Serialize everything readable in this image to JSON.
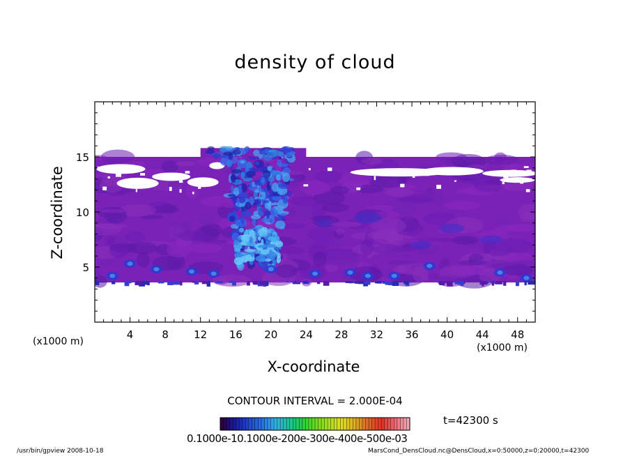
{
  "chart_data": {
    "type": "heatmap",
    "title": "density of cloud",
    "xlabel": "X-coordinate",
    "ylabel": "Z-coordinate",
    "x_unit": "(x1000 m)",
    "xlim": [
      0,
      50
    ],
    "ylim": [
      0,
      20
    ],
    "x_ticks": [
      4,
      8,
      12,
      16,
      20,
      24,
      28,
      32,
      36,
      40,
      44,
      48
    ],
    "y_ticks": [
      5,
      10,
      15
    ],
    "contour_interval": "CONTOUR INTERVAL = 2.000E-04",
    "time": "t=42300 s",
    "colorbar_labels": "0.1000e-10.1000e-200e-300e-400e-500e-03",
    "colorbar_colors": [
      "#2a0040",
      "#1a1a9a",
      "#2244cc",
      "#2a6ee0",
      "#33aee0",
      "#22c0a0",
      "#22cc44",
      "#66d822",
      "#aadd22",
      "#dddd22",
      "#ddaa22",
      "#dd6622",
      "#dd3322",
      "#ee6677",
      "#f0a8b0"
    ],
    "cloud_layer": {
      "bottom": 3.6,
      "top": 15.0
    }
  },
  "footer": {
    "left": "/usr/bin/gpview   2008-10-18",
    "right": "MarsCond_DensCloud.nc@DensCloud,x=0:50000,z=0:20000,t=42300"
  }
}
